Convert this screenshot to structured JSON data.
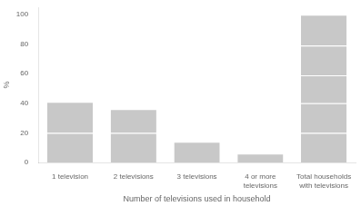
{
  "chart_data": {
    "type": "bar",
    "categories": [
      "1 television",
      "2 televisions",
      "3 televisions",
      "4 or more\ntelevisions",
      "Total households\nwith televisions"
    ],
    "series": [
      {
        "values": [
          20,
          20,
          14,
          6,
          20
        ]
      },
      {
        "values": [
          21,
          16,
          null,
          null,
          20
        ]
      },
      {
        "values": [
          null,
          null,
          null,
          null,
          19
        ]
      },
      {
        "values": [
          null,
          null,
          null,
          null,
          20
        ]
      },
      {
        "values": [
          null,
          null,
          null,
          null,
          21
        ]
      }
    ],
    "stacked": true,
    "color": "#c8c8c8",
    "xlabel": "Number of televisions used in household",
    "ylabel": "%",
    "ylim": [
      0,
      105
    ],
    "yticks": [
      0,
      20,
      40,
      60,
      80,
      100
    ],
    "grid": false
  }
}
